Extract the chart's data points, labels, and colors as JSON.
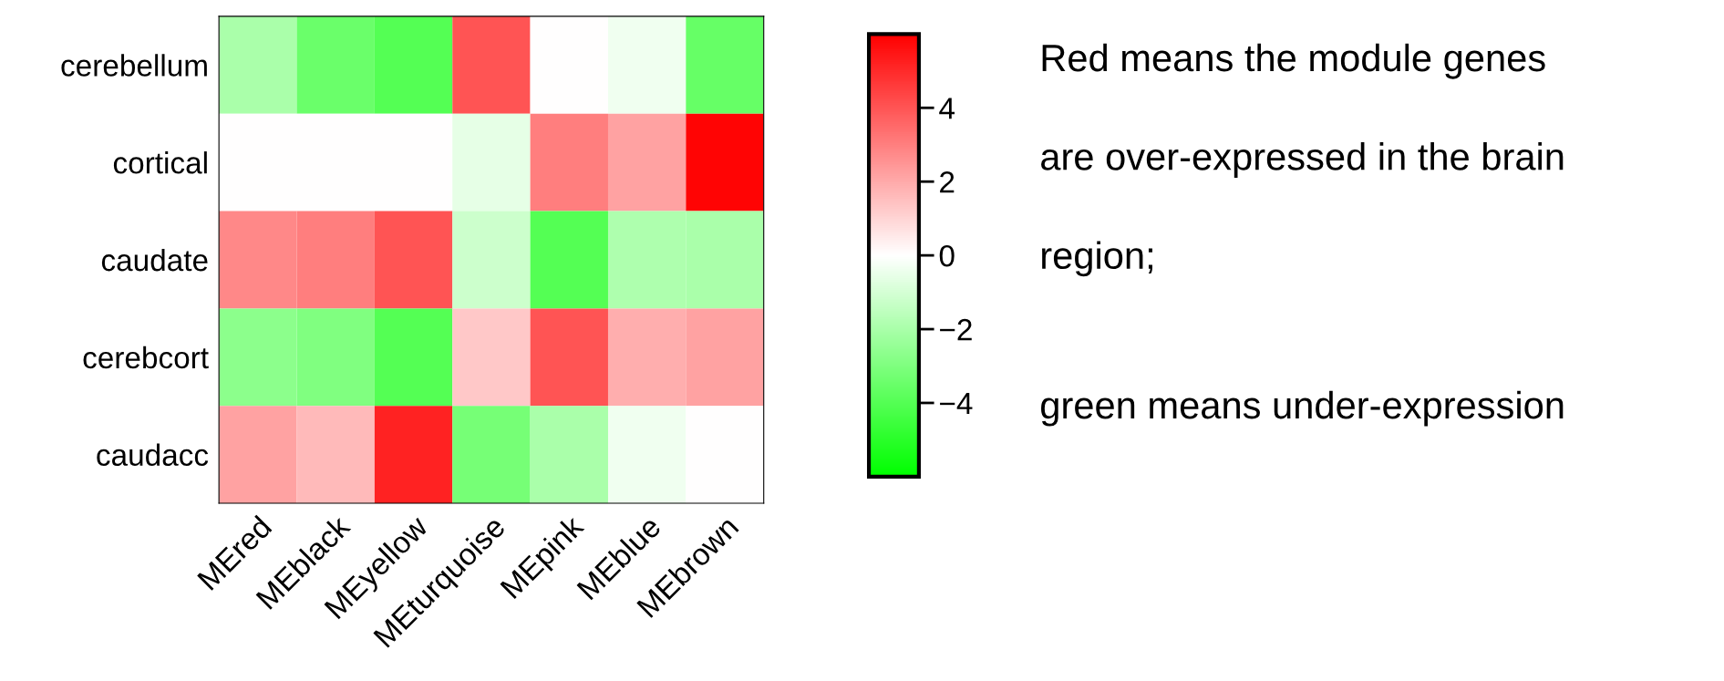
{
  "chart_data": {
    "type": "heatmap",
    "categories": [
      "MEred",
      "MEblack",
      "MEyellow",
      "MEturquoise",
      "MEpink",
      "MEblue",
      "MEbrown"
    ],
    "y_categories": [
      "cerebellum",
      "cortical",
      "caudate",
      "cerebcort",
      "caudacc"
    ],
    "cells": [
      [
        -2,
        -3.5,
        -4,
        4,
        0,
        -0.35,
        -3.6
      ],
      [
        0,
        0,
        0,
        -0.6,
        3,
        2.2,
        5.9
      ],
      [
        2.8,
        3,
        4,
        -1.2,
        -4,
        -1.9,
        -2
      ],
      [
        -2.7,
        -3,
        -4,
        1.3,
        4,
        1.9,
        2.2
      ],
      [
        2.2,
        1.6,
        5.2,
        -3.2,
        -2,
        -0.35,
        0
      ]
    ],
    "colors": [
      "#00ff00",
      "#ffffff",
      "#ff0000"
    ],
    "clim": [
      -6,
      6
    ],
    "cticks": [
      {
        "value": -4,
        "label": "−4"
      },
      {
        "value": -2,
        "label": "−2"
      },
      0,
      2,
      4
    ],
    "annotations": [
      "Red means the module genes",
      "are over-expressed in the brain",
      "region;",
      "green means under-expression"
    ]
  }
}
